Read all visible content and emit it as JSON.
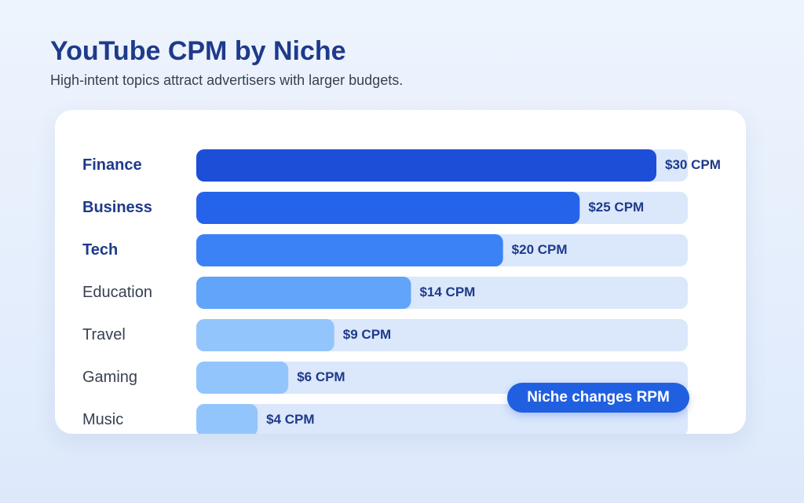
{
  "title": "YouTube CPM by Niche",
  "subtitle": "High-intent topics attract advertisers with larger budgets.",
  "callout": "Niche changes RPM",
  "chart_data": {
    "type": "bar",
    "orientation": "horizontal",
    "categories": [
      "Finance",
      "Business",
      "Tech",
      "Education",
      "Travel",
      "Gaming",
      "Music"
    ],
    "values": [
      30,
      25,
      20,
      14,
      9,
      6,
      4
    ],
    "data_labels": [
      "$30 CPM",
      "$25 CPM",
      "$20 CPM",
      "$14 CPM",
      "$9 CPM",
      "$6 CPM",
      "$4 CPM"
    ],
    "unit": "CPM",
    "xlim": [
      0,
      32
    ],
    "emphasized_categories": [
      "Finance",
      "Business",
      "Tech"
    ],
    "bar_colors": [
      "#1d4ed8",
      "#2563eb",
      "#3b82f6",
      "#60a5fa",
      "#93c5fd",
      "#93c5fd",
      "#93c5fd"
    ],
    "track_color": "#dbe7fb",
    "grid": false
  }
}
